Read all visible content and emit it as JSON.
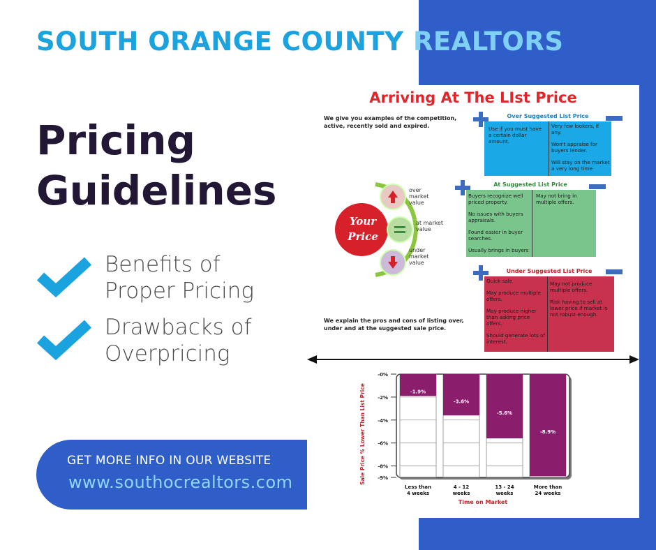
{
  "header": {
    "part1": "SOUTH ORANGE COUNTY",
    "part2": "REALTORS"
  },
  "title": {
    "line1": "Pricing",
    "line2": "Guidelines"
  },
  "bullets": [
    {
      "line1": "Benefits of",
      "line2": "Proper Pricing"
    },
    {
      "line1": "Drawbacks of",
      "line2": "Overpricing"
    }
  ],
  "cta": {
    "label": "GET MORE INFO IN OUR WEBSITE",
    "url": "www.southocrealtors.com"
  },
  "doc": {
    "title": "Arriving At The LIst Price",
    "intro": "We give you examples of the competition, active, recently sold and expired.",
    "outro": "We explain the pros and cons of listing over, under and at the suggested sale price.",
    "your_price": {
      "line1": "Your",
      "line2": "Price"
    },
    "levels": [
      {
        "line1": "over",
        "line2": "market",
        "line3": "value"
      },
      {
        "line1": "at market",
        "line2": "value"
      },
      {
        "line1": "under",
        "line2": "market",
        "line3": "value"
      }
    ],
    "boxes": [
      {
        "header": "Over Suggested List Price",
        "color": "#1aa9e6",
        "left": [
          "Use if you must have a certain dollar amount."
        ],
        "right": [
          "Very few lookers, if any.",
          "Won't appraise for buyers lender.",
          "Will stay on the market a very long time."
        ]
      },
      {
        "header": "At Suggested List Price",
        "color": "#79c58b",
        "left": [
          "Buyers recognize well priced property.",
          "No issues with buyers appraisals.",
          "Found easier in buyer searches.",
          "Usually brings in buyers"
        ],
        "right": [
          "May not bring in multiple offers."
        ]
      },
      {
        "header": "Under Suggested List Price",
        "color": "#c8324f",
        "left": [
          "Quick sale",
          "May produce multiple offers.",
          "May produce higher than asking price offers.",
          "Should generate lots of interest."
        ],
        "right": [
          "May not produce multiple offers.",
          "Risk having to sell at lower price if market is not robust enough."
        ]
      }
    ]
  },
  "chart_data": {
    "type": "bar",
    "categories": [
      "Less than 4 weeks",
      "4 - 12 weeks",
      "13 - 24 weeks",
      "More than 24 weeks"
    ],
    "values": [
      -1.9,
      -3.6,
      -5.6,
      -8.9
    ],
    "value_labels": [
      "-1.9%",
      "-3.6%",
      "-5.6%",
      "-8.9%"
    ],
    "ylabel": "Sale Price % Lower Than List Price",
    "xlabel": "Time on Market",
    "yticks": [
      "-0%",
      "-2%",
      "-4%",
      "-6%",
      "-8%",
      "-9%"
    ],
    "ylim": [
      -9,
      0
    ],
    "bar_color": "#8b1e6c",
    "grid": true
  },
  "colors": {
    "brand_blue": "#2f5ec9",
    "accent_cyan": "#1aa3df",
    "title_dark": "#231736",
    "doc_red": "#e3242b"
  }
}
